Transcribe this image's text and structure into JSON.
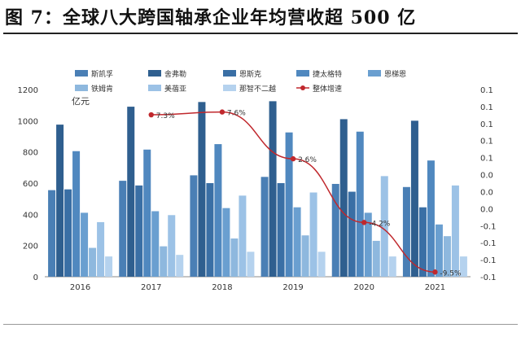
{
  "title": "图 7：全球八大跨国轴承企业年均营收超 500 亿",
  "chart_data": {
    "type": "bar",
    "unit_label": "亿元",
    "categories": [
      "2016",
      "2017",
      "2018",
      "2019",
      "2020",
      "2021"
    ],
    "series": [
      {
        "name": "斯凯孚",
        "color": "#4a7fb5",
        "values": [
          555,
          615,
          650,
          640,
          595,
          575
        ]
      },
      {
        "name": "舍弗勒",
        "color": "#2f5f8f",
        "values": [
          975,
          1090,
          1120,
          1125,
          1010,
          1000
        ]
      },
      {
        "name": "恩斯克",
        "color": "#3a6fa5",
        "values": [
          560,
          585,
          600,
          600,
          545,
          445
        ]
      },
      {
        "name": "捷太格特",
        "color": "#5088bf",
        "values": [
          805,
          815,
          850,
          925,
          930,
          745
        ]
      },
      {
        "name": "恩梯恩",
        "color": "#6a9fd0",
        "values": [
          410,
          420,
          440,
          445,
          410,
          335
        ]
      },
      {
        "name": "铁姆肯",
        "color": "#8eb8de",
        "values": [
          185,
          195,
          245,
          265,
          230,
          260
        ]
      },
      {
        "name": "美蓓亚",
        "color": "#9cc2e6",
        "values": [
          350,
          395,
          520,
          540,
          645,
          585
        ]
      },
      {
        "name": "那智不二越",
        "color": "#b5d2ee",
        "values": [
          130,
          140,
          160,
          160,
          130,
          130
        ]
      }
    ],
    "line": {
      "name": "整体增速",
      "color": "#c0282d",
      "values": [
        7.3,
        7.6,
        2.6,
        -4.2,
        -9.5
      ],
      "x": [
        "2017",
        "2018",
        "2019",
        "2020",
        "2021"
      ],
      "labels": [
        "7.3%",
        "7.6%",
        "2.6%",
        "-4.2%",
        "-9.5%"
      ]
    },
    "ylim": [
      0,
      1200
    ],
    "yticks": [
      0,
      200,
      400,
      600,
      800,
      1000,
      1200
    ],
    "y2ticks": [
      "0.1",
      "0.1",
      "0.1",
      "0.1",
      "0.1",
      "0.0",
      "0.0",
      "0.0",
      "-0.1",
      "-0.1",
      "-0.1",
      "-0.1"
    ],
    "legend_position": "top"
  }
}
